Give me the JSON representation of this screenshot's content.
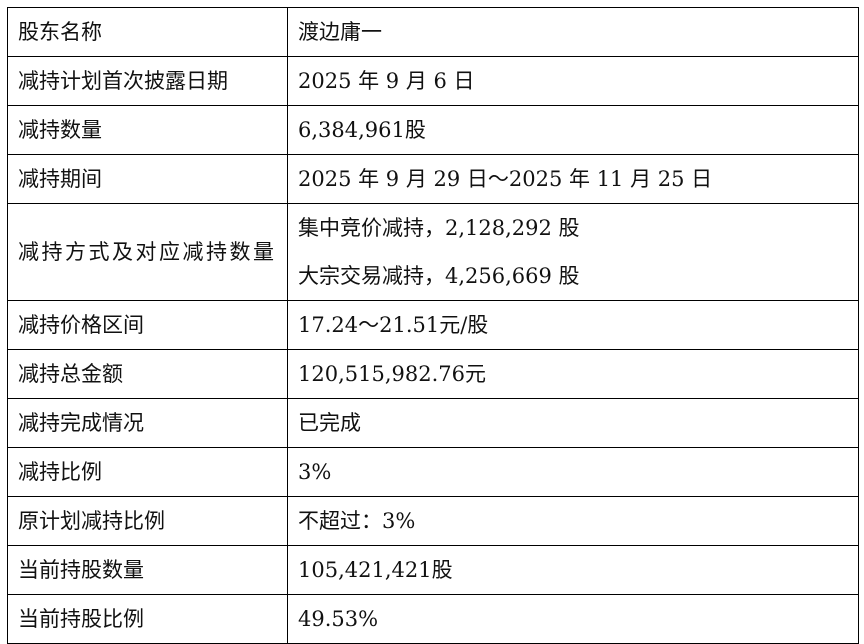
{
  "table": {
    "rows": [
      [
        "股东名称",
        "渡边庸一"
      ],
      [
        "减持计划首次披露日期",
        "2025 年 9 月 6 日"
      ],
      [
        "减持数量",
        "6,384,961股"
      ],
      [
        "减持期间",
        "2025 年 9 月 29 日～2025 年 11 月 25 日"
      ],
      [
        "减持方式及对应减持数量",
        [
          "集中竞价减持，2,128,292 股",
          "大宗交易减持，4,256,669 股"
        ]
      ],
      [
        "减持价格区间",
        "17.24～21.51元/股"
      ],
      [
        "减持总金额",
        "120,515,982.76元"
      ],
      [
        "减持完成情况",
        "已完成"
      ],
      [
        "减持比例",
        "3%"
      ],
      [
        "原计划减持比例",
        "不超过：3%"
      ],
      [
        "当前持股数量",
        "105,421,421股"
      ],
      [
        "当前持股比例",
        "49.53%"
      ]
    ]
  }
}
